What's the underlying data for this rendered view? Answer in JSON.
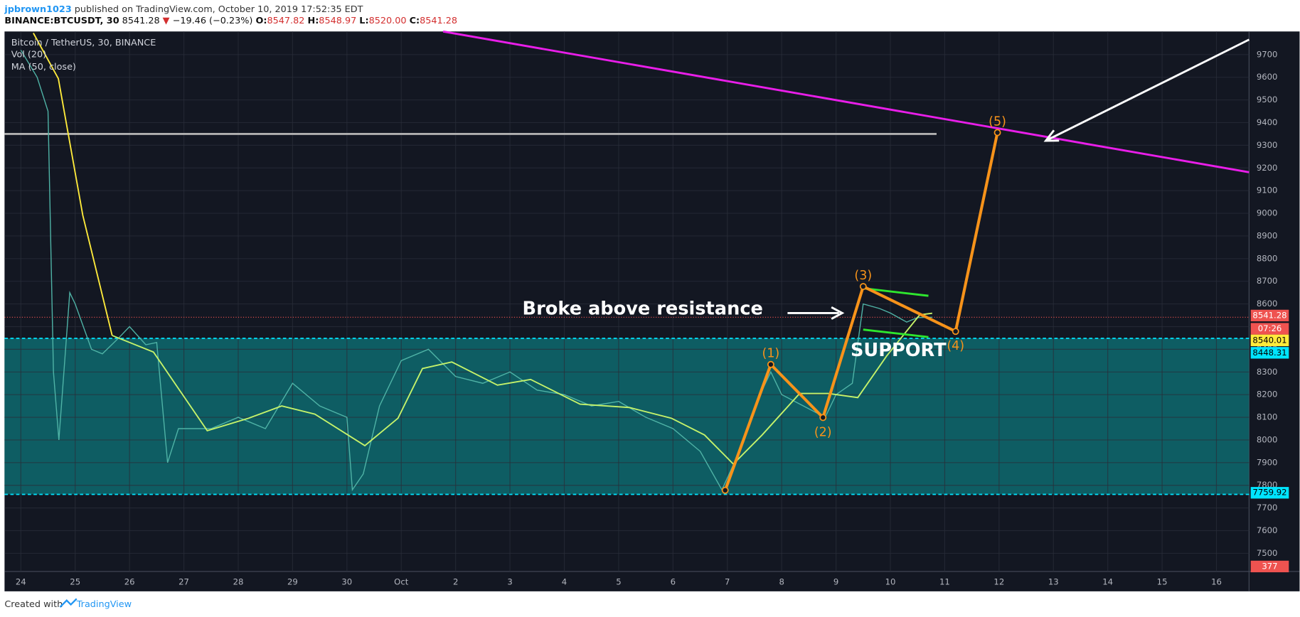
{
  "header": {
    "author": "jpbrown1023",
    "published": " published on TradingView.com, October 10, 2019 17:52:35 EDT",
    "symbol": "BINANCE:BTCUSDT, 30",
    "price": "8541.28",
    "arrow": "▼",
    "change": "−19.46 (−0.23%)",
    "ohlc": [
      [
        "O:",
        "8547.82"
      ],
      [
        "H:",
        "8548.97"
      ],
      [
        "L:",
        "8520.00"
      ],
      [
        "C:",
        "8541.28"
      ]
    ]
  },
  "footer": {
    "created": "Created with",
    "brand": "TradingView"
  },
  "chart_data": {
    "type": "line",
    "legend": [
      "Bitcoin / TetherUS, 30, BINANCE",
      "Vol (20)",
      "MA (50, close)"
    ],
    "xlim": [
      -0.3,
      22.6
    ],
    "xticks": [
      {
        "value": 0,
        "label": "24"
      },
      {
        "value": 1,
        "label": "25"
      },
      {
        "value": 2,
        "label": "26"
      },
      {
        "value": 3,
        "label": "27"
      },
      {
        "value": 4,
        "label": "28"
      },
      {
        "value": 5,
        "label": "29"
      },
      {
        "value": 6,
        "label": "30"
      },
      {
        "value": 7,
        "label": "Oct"
      },
      {
        "value": 8,
        "label": "2"
      },
      {
        "value": 9,
        "label": "3"
      },
      {
        "value": 10,
        "label": "4"
      },
      {
        "value": 11,
        "label": "5"
      },
      {
        "value": 12,
        "label": "6"
      },
      {
        "value": 13,
        "label": "7"
      },
      {
        "value": 14,
        "label": "8"
      },
      {
        "value": 15,
        "label": "9"
      },
      {
        "value": 16,
        "label": "10"
      },
      {
        "value": 17,
        "label": "11"
      },
      {
        "value": 18,
        "label": "12"
      },
      {
        "value": 19,
        "label": "13"
      },
      {
        "value": 20,
        "label": "14"
      },
      {
        "value": 21,
        "label": "15"
      },
      {
        "value": 22,
        "label": "16"
      }
    ],
    "ylim": [
      7420,
      9802
    ],
    "yticks": [
      7500,
      7600,
      7700,
      7800,
      7900,
      8000,
      8100,
      8200,
      8300,
      8400,
      8500,
      8600,
      8700,
      8800,
      8900,
      9000,
      9100,
      9200,
      9300,
      9400,
      9500,
      9600,
      9700
    ],
    "grid": true,
    "series": [
      {
        "name": "Bitcoin / TetherUS, 30, BINANCE",
        "color": "#4fb3a6",
        "x": [
          0,
          0.3,
          0.5,
          0.6,
          0.7,
          0.9,
          1,
          1.3,
          1.5,
          1.8,
          2,
          2.3,
          2.5,
          2.7,
          2.9,
          3,
          3.5,
          4,
          4.5,
          5,
          5.5,
          6,
          6.1,
          6.3,
          6.6,
          7,
          7.5,
          8,
          8.5,
          9,
          9.5,
          10,
          10.5,
          11,
          11.5,
          12,
          12.5,
          12.9,
          13.3,
          13.6,
          13.8,
          14,
          14.4,
          14.8,
          15,
          15.3,
          15.5,
          15.8,
          16,
          16.3,
          16.5,
          16.77
        ],
        "values": [
          9720,
          9600,
          9450,
          8300,
          8000,
          8650,
          8600,
          8400,
          8380,
          8450,
          8500,
          8420,
          8430,
          7900,
          8050,
          8050,
          8050,
          8100,
          8050,
          8250,
          8150,
          8100,
          7780,
          7850,
          8150,
          8350,
          8400,
          8280,
          8250,
          8300,
          8220,
          8200,
          8150,
          8170,
          8100,
          8050,
          7950,
          7780,
          7990,
          8200,
          8300,
          8200,
          8150,
          8100,
          8200,
          8250,
          8600,
          8580,
          8560,
          8520,
          8540,
          8541.28
        ]
      },
      {
        "name": "MA (50, close)",
        "color": "#c6f36a",
        "x": [
          1.68,
          2.44,
          3.43,
          4.19,
          4.8,
          5.41,
          6.33,
          6.94,
          7.39,
          7.93,
          8.77,
          9.38,
          10.29,
          11.2,
          11.97,
          12.58,
          13.11,
          13.64,
          14.33,
          14.86,
          15.4,
          15.93,
          16.54,
          16.77
        ],
        "values": [
          8461,
          8388,
          8041,
          8096,
          8150,
          8114,
          7975,
          8096,
          8315,
          8344,
          8242,
          8267,
          8158,
          8143,
          8096,
          8022,
          7894,
          8022,
          8205,
          8205,
          8187,
          8370,
          8552,
          8559
        ]
      },
      {
        "color": "#ffeb3b",
        "x": [
          0.23,
          0.69,
          1.14,
          1.68
        ],
        "values": [
          9795,
          9594,
          8991,
          8461
        ]
      }
    ],
    "levels": [
      {
        "value": 8448.31,
        "color": "#00e5ff"
      },
      {
        "value": 7759.92,
        "color": "#00e5ff"
      }
    ],
    "support_fill": "#0e6a6e",
    "last_price": {
      "value": 8541.28,
      "color": "#ef5350"
    },
    "resistance": {
      "x": [
        -0.3,
        16.85
      ],
      "values": [
        9350,
        9350
      ],
      "color": "#b0b0b0"
    },
    "trendline": {
      "x": [
        7.77,
        22.6
      ],
      "values": [
        9802,
        9181
      ],
      "color": "#e91ee9"
    },
    "channel": [
      {
        "x": [
          15.5,
          16.7
        ],
        "values": [
          8669,
          8636
        ],
        "color": "#2ee62e"
      },
      {
        "x": [
          15.5,
          16.7
        ],
        "values": [
          8487,
          8454
        ],
        "color": "#2ee62e"
      }
    ],
    "waves": {
      "color": "#f7931a",
      "labels": [
        null,
        "(1)",
        "(2)",
        "(3)",
        "(4)",
        "(5)"
      ],
      "x": [
        12.96,
        13.8,
        14.76,
        15.5,
        17.2,
        17.97
      ],
      "values": [
        7778,
        8333,
        8099,
        8677,
        8479,
        9356
      ]
    },
    "arrow": {
      "x": [
        22.6,
        18.86
      ],
      "values": [
        9766,
        9320
      ],
      "color": "#ffffff"
    },
    "annotations": [
      "Broke above resistance",
      "SUPPORT"
    ],
    "price_tags": [
      {
        "label": "8541.28",
        "color": "#ef5350"
      },
      {
        "label": "07:26",
        "color": "#ef5350"
      },
      {
        "label": "8540.01",
        "color": "#ffeb3b"
      },
      {
        "label": "8448.31",
        "color": "#00e5ff"
      },
      {
        "label": "7759.92",
        "color": "#00e5ff"
      },
      {
        "label": "377",
        "color": "#ef5350"
      }
    ]
  }
}
